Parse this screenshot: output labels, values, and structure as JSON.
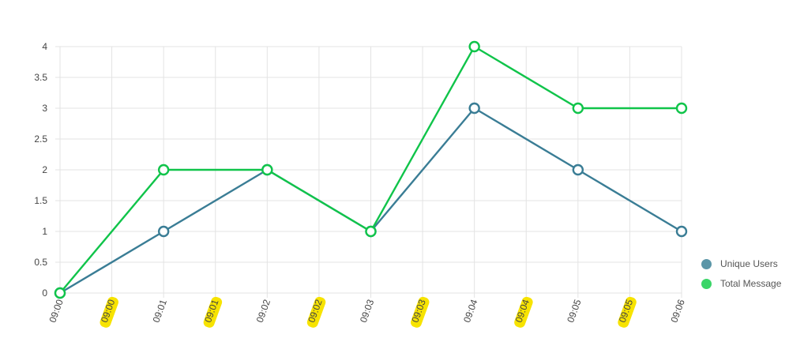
{
  "chart_data": {
    "type": "line",
    "title": "",
    "xlabel": "",
    "ylabel": "",
    "x": [
      "09:00",
      "09:00",
      "09:01",
      "09:01",
      "09:02",
      "09:02",
      "09:03",
      "09:03",
      "09:04",
      "09:04",
      "09:05",
      "09:05",
      "09:06"
    ],
    "highlighted_x_indices": [
      1,
      3,
      5,
      7,
      9,
      11
    ],
    "ylim": [
      0,
      4
    ],
    "yticks": [
      "0",
      "0.5",
      "1",
      "1.5",
      "2",
      "2.5",
      "3",
      "3.5",
      "4"
    ],
    "grid": true,
    "legend_position": "right",
    "series": [
      {
        "name": "Unique Users",
        "color": "#3a7d95",
        "legend_color": "#5b96a8",
        "points": [
          {
            "x": "09:00",
            "y": 0
          },
          {
            "x": "09:01",
            "y": 1
          },
          {
            "x": "09:02",
            "y": 2
          },
          {
            "x": "09:03",
            "y": 1
          },
          {
            "x": "09:04",
            "y": 3
          },
          {
            "x": "09:05",
            "y": 2
          },
          {
            "x": "09:06",
            "y": 1
          }
        ]
      },
      {
        "name": "Total Message",
        "color": "#10c44a",
        "legend_color": "#3ad568",
        "points": [
          {
            "x": "09:00",
            "y": 0
          },
          {
            "x": "09:01",
            "y": 2
          },
          {
            "x": "09:02",
            "y": 2
          },
          {
            "x": "09:03",
            "y": 1
          },
          {
            "x": "09:04",
            "y": 4
          },
          {
            "x": "09:05",
            "y": 3
          },
          {
            "x": "09:06",
            "y": 3
          }
        ]
      }
    ],
    "colors": {
      "grid": "#e3e3e3",
      "axis_text": "#444444",
      "highlight": "#f7e300"
    }
  }
}
